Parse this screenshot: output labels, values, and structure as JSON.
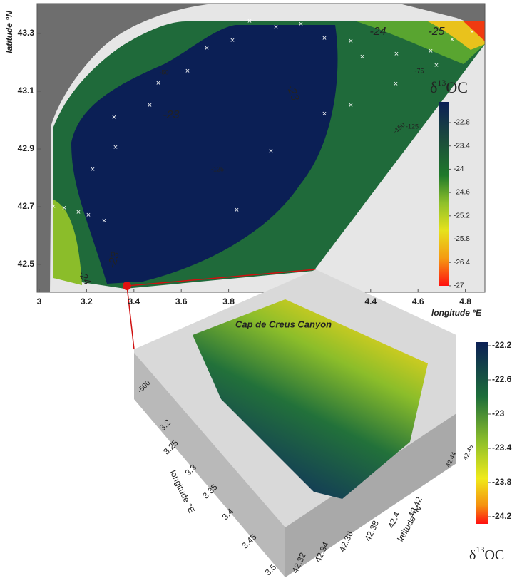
{
  "top_map": {
    "x_axis_label": "longitude °E",
    "y_axis_label": "latitude °N",
    "xticks": [
      3,
      3.2,
      3.4,
      3.6,
      3.8,
      4.4,
      4.6,
      4.8
    ],
    "yticks": [
      43.3,
      43.1,
      42.9,
      42.7,
      42.5
    ],
    "contour_labels": [
      "-24",
      "-25",
      "-23",
      "-23",
      "-23",
      "-24"
    ],
    "depth_labels": [
      "-50",
      "-75",
      "-125",
      "-150",
      "-125"
    ],
    "colorbar": {
      "title": {
        "symbol": "δ",
        "superscript": "13",
        "text": "OC"
      },
      "ticks": [
        -22.8,
        -23.4,
        -24,
        -24.6,
        -25.2,
        -25.8,
        -26.4,
        -27
      ]
    }
  },
  "canyon_3d": {
    "title": "Cap de Creus Canyon",
    "depth_label": "-500",
    "longitude_label": "longitude °E",
    "latitude_label": "latitude °N",
    "longitude_ticks": [
      3.2,
      3.25,
      3.3,
      3.35,
      3.4,
      3.45,
      3.5
    ],
    "latitude_ticks": [
      42.32,
      42.34,
      42.36,
      42.38,
      42.4,
      42.42,
      42.44,
      42.46
    ],
    "colorbar": {
      "title": {
        "symbol": "δ",
        "superscript": "13",
        "text": "OC"
      },
      "ticks": [
        -22.2,
        -22.6,
        -23,
        -23.4,
        -23.8,
        -24.2
      ]
    }
  }
}
